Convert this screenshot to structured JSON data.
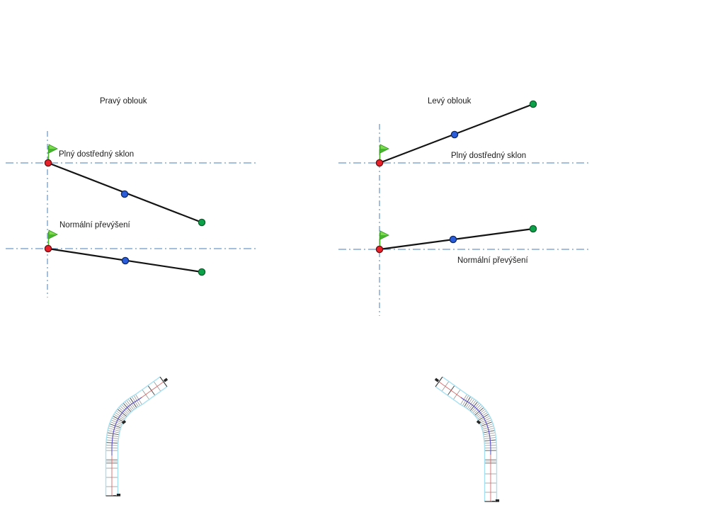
{
  "page": {
    "background": "#ffffff"
  },
  "icons": {
    "start_flag": "green-pennant-flag-icon",
    "begin_point": "red-circle-grip",
    "mid_point": "blue-circle-grip",
    "end_point": "green-circle-grip"
  },
  "colors": {
    "reference_line": "#4a7ebb",
    "diagram_line": "#141414",
    "point_begin": "#e8212b",
    "point_begin_stroke": "#6b0f12",
    "point_mid": "#2b5cd9",
    "point_mid_stroke": "#0d2a66",
    "point_end": "#0ca24a",
    "point_end_stroke": "#0b5e2b",
    "flag_fill": "#7edb4f",
    "flag_shade": "#46b62c",
    "flag_stroke": "#2f8f1f",
    "flag_pole": "#49b32b",
    "road_edge": "#a6e1f2",
    "road_centerline": "#d96a6a",
    "road_transition": "#5d58cf",
    "road_tick": "#8f8f8f",
    "road_tick_dark": "#4f4f4f",
    "road_band": "#c9c9c9",
    "road_end_tick": "#3a3a3a",
    "station_mark": "#262626",
    "text": "#1c1c1c"
  },
  "sections": {
    "pravy_oblouk": {
      "title": "Pravý oblouk",
      "full_slope_label": "Plný dostředný sklon",
      "normal_crown_label": "Normální převýšení"
    },
    "levy_oblouk": {
      "title": "Levý oblouk",
      "full_slope_label": "Plný dostředný sklon",
      "normal_crown_label": "Normální převýšení"
    }
  }
}
